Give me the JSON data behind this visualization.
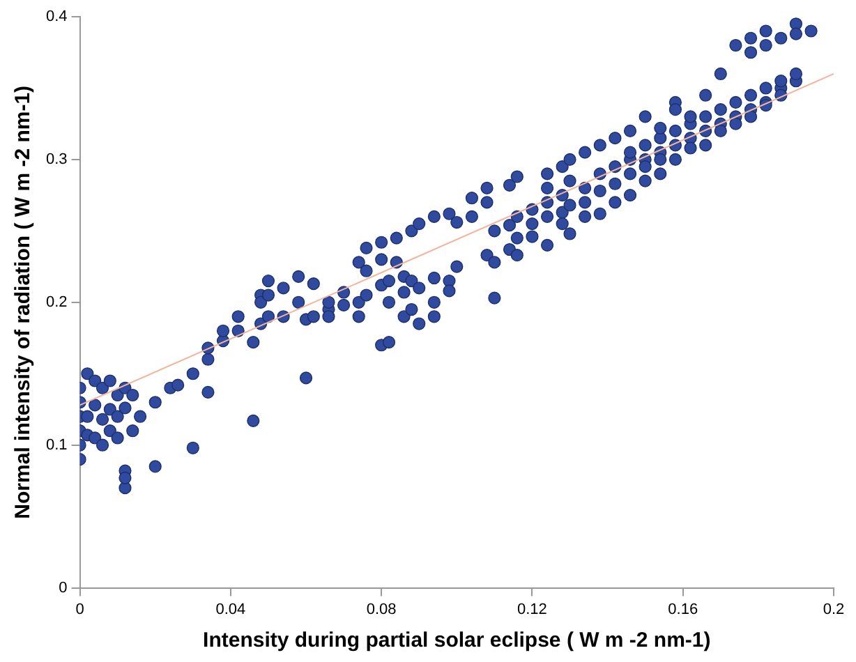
{
  "chart_data": {
    "type": "scatter",
    "xlabel": "Intensity during partial solar eclipse ( W m -2 nm-1)",
    "ylabel": "Normal intensity of radiation ( W m -2 nm-1)",
    "xlim": [
      0,
      0.2
    ],
    "ylim": [
      0,
      0.4
    ],
    "xticks": [
      0,
      0.04,
      0.08,
      0.12,
      0.16,
      0.2
    ],
    "yticks": [
      0,
      0.1,
      0.2,
      0.3,
      0.4
    ],
    "grid": false,
    "legend": false,
    "series": [
      {
        "marker": "circle",
        "color": "#2f4a9e",
        "x": [
          0,
          0,
          0,
          0,
          0,
          0,
          0.002,
          0.002,
          0.002,
          0.004,
          0.004,
          0.004,
          0.006,
          0.006,
          0.006,
          0.008,
          0.008,
          0.008,
          0.01,
          0.01,
          0.01,
          0.012,
          0.012,
          0.012,
          0.012,
          0.012,
          0.014,
          0.014,
          0.016,
          0.02,
          0.02,
          0.024,
          0.026,
          0.03,
          0.03,
          0.034,
          0.034,
          0.034,
          0.038,
          0.038,
          0.042,
          0.042,
          0.046,
          0.046,
          0.048,
          0.048,
          0.048,
          0.05,
          0.05,
          0.05,
          0.054,
          0.054,
          0.058,
          0.058,
          0.06,
          0.06,
          0.062,
          0.062,
          0.066,
          0.066,
          0.066,
          0.07,
          0.07,
          0.074,
          0.074,
          0.074,
          0.076,
          0.076,
          0.076,
          0.08,
          0.08,
          0.08,
          0.08,
          0.082,
          0.082,
          0.082,
          0.084,
          0.084,
          0.086,
          0.086,
          0.086,
          0.088,
          0.088,
          0.088,
          0.09,
          0.09,
          0.09,
          0.094,
          0.094,
          0.094,
          0.094,
          0.098,
          0.098,
          0.098,
          0.1,
          0.1,
          0.104,
          0.104,
          0.108,
          0.108,
          0.108,
          0.11,
          0.11,
          0.11,
          0.114,
          0.114,
          0.114,
          0.116,
          0.116,
          0.116,
          0.116,
          0.12,
          0.12,
          0.12,
          0.124,
          0.124,
          0.124,
          0.124,
          0.124,
          0.128,
          0.128,
          0.128,
          0.128,
          0.13,
          0.13,
          0.13,
          0.13,
          0.134,
          0.134,
          0.134,
          0.134,
          0.138,
          0.138,
          0.138,
          0.138,
          0.142,
          0.142,
          0.142,
          0.142,
          0.146,
          0.146,
          0.146,
          0.146,
          0.146,
          0.15,
          0.15,
          0.15,
          0.15,
          0.15,
          0.154,
          0.154,
          0.154,
          0.154,
          0.154,
          0.158,
          0.158,
          0.158,
          0.158,
          0.158,
          0.162,
          0.162,
          0.162,
          0.162,
          0.166,
          0.166,
          0.166,
          0.166,
          0.17,
          0.17,
          0.17,
          0.17,
          0.174,
          0.174,
          0.174,
          0.174,
          0.178,
          0.178,
          0.178,
          0.178,
          0.178,
          0.182,
          0.182,
          0.182,
          0.182,
          0.182,
          0.186,
          0.186,
          0.186,
          0.186,
          0.19,
          0.19,
          0.19,
          0.19,
          0.194
        ],
        "values": [
          0.09,
          0.1,
          0.11,
          0.12,
          0.13,
          0.14,
          0.15,
          0.107,
          0.12,
          0.128,
          0.145,
          0.105,
          0.14,
          0.118,
          0.1,
          0.145,
          0.125,
          0.11,
          0.135,
          0.12,
          0.105,
          0.14,
          0.082,
          0.07,
          0.077,
          0.126,
          0.135,
          0.11,
          0.12,
          0.085,
          0.13,
          0.14,
          0.142,
          0.098,
          0.15,
          0.16,
          0.168,
          0.137,
          0.173,
          0.18,
          0.18,
          0.19,
          0.117,
          0.172,
          0.205,
          0.185,
          0.2,
          0.215,
          0.19,
          0.205,
          0.19,
          0.21,
          0.218,
          0.2,
          0.147,
          0.188,
          0.213,
          0.19,
          0.195,
          0.19,
          0.2,
          0.198,
          0.207,
          0.19,
          0.2,
          0.228,
          0.238,
          0.222,
          0.205,
          0.242,
          0.23,
          0.212,
          0.17,
          0.215,
          0.2,
          0.172,
          0.228,
          0.245,
          0.19,
          0.207,
          0.218,
          0.195,
          0.215,
          0.25,
          0.255,
          0.21,
          0.185,
          0.26,
          0.217,
          0.19,
          0.2,
          0.262,
          0.215,
          0.208,
          0.256,
          0.225,
          0.273,
          0.26,
          0.27,
          0.233,
          0.28,
          0.25,
          0.228,
          0.203,
          0.254,
          0.237,
          0.282,
          0.26,
          0.245,
          0.233,
          0.288,
          0.255,
          0.265,
          0.246,
          0.27,
          0.28,
          0.29,
          0.26,
          0.24,
          0.263,
          0.275,
          0.255,
          0.295,
          0.285,
          0.268,
          0.248,
          0.3,
          0.27,
          0.28,
          0.26,
          0.305,
          0.29,
          0.278,
          0.262,
          0.31,
          0.283,
          0.295,
          0.27,
          0.315,
          0.29,
          0.3,
          0.275,
          0.32,
          0.305,
          0.3,
          0.31,
          0.285,
          0.33,
          0.295,
          0.305,
          0.315,
          0.29,
          0.322,
          0.3,
          0.31,
          0.32,
          0.3,
          0.34,
          0.335,
          0.315,
          0.325,
          0.308,
          0.33,
          0.32,
          0.33,
          0.31,
          0.345,
          0.325,
          0.335,
          0.32,
          0.36,
          0.33,
          0.34,
          0.325,
          0.38,
          0.335,
          0.345,
          0.33,
          0.375,
          0.385,
          0.34,
          0.35,
          0.338,
          0.39,
          0.38,
          0.35,
          0.355,
          0.345,
          0.385,
          0.355,
          0.36,
          0.395,
          0.388,
          0.39
        ]
      },
      {
        "type": "line",
        "marker": "none",
        "color": "#f4b49c",
        "x": [
          0,
          0.2
        ],
        "values": [
          0.128,
          0.36
        ]
      }
    ]
  }
}
